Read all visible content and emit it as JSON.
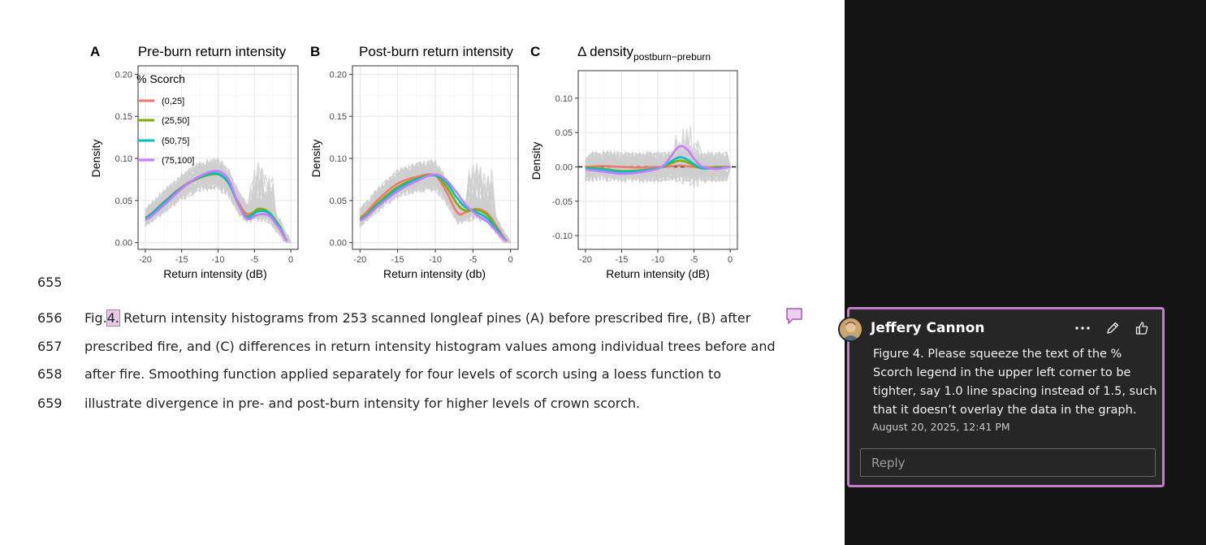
{
  "figure": {
    "panels": [
      {
        "letter": "A",
        "title": "Pre-burn return intensity",
        "ylabel": "Density",
        "xlabel": "Return intensity (dB)"
      },
      {
        "letter": "B",
        "title": "Post-burn return intensity",
        "ylabel": "Density",
        "xlabel": "Return intensity (db)"
      },
      {
        "letter": "C",
        "title": "Δ density",
        "title_sub": "postburn−preburn",
        "ylabel": "Density",
        "xlabel": "Return intensity (dB)"
      }
    ],
    "legend": {
      "title": "% Scorch",
      "items": [
        {
          "label": "(0,25]",
          "color": "#F07A6A"
        },
        {
          "label": "(25,50]",
          "color": "#7CAE00"
        },
        {
          "label": "(50,75]",
          "color": "#00BFC4"
        },
        {
          "label": "(75,100]",
          "color": "#C77CFF"
        }
      ]
    }
  },
  "chart_data": [
    {
      "type": "line",
      "title": "Pre-burn return intensity",
      "xlabel": "Return intensity (dB)",
      "ylabel": "Density",
      "xlim": [
        -20,
        0
      ],
      "ylim": [
        0,
        0.2
      ],
      "xticks": [
        -20,
        -15,
        -10,
        -5,
        0
      ],
      "xtick_labels": [
        "-20",
        "-15",
        "-10",
        "-5",
        "0"
      ],
      "yticks": [
        0,
        0.05,
        0.1,
        0.15,
        0.2
      ],
      "ytick_labels": [
        "0.00",
        "0.05",
        "0.10",
        "0.15",
        "0.20"
      ],
      "grid": true,
      "legend": "top-left",
      "series": [
        {
          "name": "(0,25]",
          "x": [
            -20,
            -17.5,
            -15,
            -12.5,
            -10,
            -8.5,
            -7,
            -6,
            -4.5,
            -3,
            -1.5,
            -0.5
          ],
          "y": [
            0.03,
            0.048,
            0.066,
            0.078,
            0.082,
            0.07,
            0.045,
            0.034,
            0.038,
            0.035,
            0.018,
            0.002
          ]
        },
        {
          "name": "(25,50]",
          "x": [
            -20,
            -17.5,
            -15,
            -12.5,
            -10,
            -8.5,
            -7,
            -6,
            -4.5,
            -3,
            -1.5,
            -0.5
          ],
          "y": [
            0.029,
            0.047,
            0.065,
            0.077,
            0.081,
            0.07,
            0.043,
            0.031,
            0.04,
            0.036,
            0.019,
            0.002
          ]
        },
        {
          "name": "(50,75]",
          "x": [
            -20,
            -17.5,
            -15,
            -12.5,
            -10,
            -8.5,
            -7,
            -6,
            -4.5,
            -3,
            -1.5,
            -0.5
          ],
          "y": [
            0.029,
            0.047,
            0.065,
            0.078,
            0.082,
            0.07,
            0.042,
            0.03,
            0.037,
            0.035,
            0.018,
            0.002
          ]
        },
        {
          "name": "(75,100]",
          "x": [
            -20,
            -17.5,
            -15,
            -12.5,
            -10,
            -8.5,
            -7,
            -6,
            -4.5,
            -3,
            -1.5,
            -0.5
          ],
          "y": [
            0.027,
            0.044,
            0.064,
            0.079,
            0.085,
            0.074,
            0.042,
            0.028,
            0.033,
            0.032,
            0.016,
            0.002
          ]
        }
      ]
    },
    {
      "type": "line",
      "title": "Post-burn return intensity",
      "xlabel": "Return intensity (db)",
      "ylabel": "Density",
      "xlim": [
        -20,
        0
      ],
      "ylim": [
        0,
        0.2
      ],
      "xticks": [
        -20,
        -15,
        -10,
        -5,
        0
      ],
      "xtick_labels": [
        "-20",
        "-15",
        "-10",
        "-5",
        "0"
      ],
      "yticks": [
        0,
        0.05,
        0.1,
        0.15,
        0.2
      ],
      "ytick_labels": [
        "0.00",
        "0.05",
        "0.10",
        "0.15",
        "0.20"
      ],
      "grid": true,
      "legend": "none",
      "series": [
        {
          "name": "(0,25]",
          "x": [
            -20,
            -17.5,
            -15,
            -12.5,
            -10,
            -8.5,
            -7,
            -6,
            -4.5,
            -3,
            -1.5,
            -0.5
          ],
          "y": [
            0.03,
            0.052,
            0.07,
            0.078,
            0.08,
            0.06,
            0.035,
            0.036,
            0.04,
            0.034,
            0.015,
            0.002
          ]
        },
        {
          "name": "(25,50]",
          "x": [
            -20,
            -17.5,
            -15,
            -12.5,
            -10,
            -8.5,
            -7,
            -6,
            -4.5,
            -3,
            -1.5,
            -0.5
          ],
          "y": [
            0.028,
            0.048,
            0.066,
            0.076,
            0.08,
            0.066,
            0.045,
            0.038,
            0.039,
            0.032,
            0.013,
            0.002
          ]
        },
        {
          "name": "(50,75]",
          "x": [
            -20,
            -17.5,
            -15,
            -12.5,
            -10,
            -8.5,
            -7,
            -6,
            -4.5,
            -3,
            -1.5,
            -0.5
          ],
          "y": [
            0.027,
            0.046,
            0.064,
            0.075,
            0.08,
            0.071,
            0.052,
            0.042,
            0.036,
            0.028,
            0.012,
            0.002
          ]
        },
        {
          "name": "(75,100]",
          "x": [
            -20,
            -17.5,
            -15,
            -12.5,
            -10,
            -8.5,
            -7,
            -6,
            -4.5,
            -3,
            -1.5,
            -0.5
          ],
          "y": [
            0.026,
            0.044,
            0.061,
            0.073,
            0.081,
            0.074,
            0.058,
            0.045,
            0.033,
            0.024,
            0.01,
            0.002
          ]
        }
      ]
    },
    {
      "type": "line",
      "title": "Δ density postburn−preburn",
      "xlabel": "Return intensity (dB)",
      "ylabel": "Density",
      "xlim": [
        -20,
        0
      ],
      "ylim": [
        -0.12,
        0.14
      ],
      "xticks": [
        -20,
        -15,
        -10,
        -5,
        0
      ],
      "xtick_labels": [
        "-20",
        "-15",
        "-10",
        "-5",
        "0"
      ],
      "yticks": [
        -0.1,
        -0.05,
        0,
        0.05,
        0.1
      ],
      "ytick_labels": [
        "-0.10",
        "-0.05",
        "0.00",
        "0.05",
        "0.10"
      ],
      "grid": true,
      "legend": "none",
      "reference_line_y": 0,
      "series": [
        {
          "name": "(0,25]",
          "x": [
            -20,
            -17.5,
            -15,
            -12.5,
            -10,
            -9,
            -8,
            -7,
            -6,
            -5,
            -4,
            -2,
            0
          ],
          "y": [
            0.0,
            0.001,
            0.0,
            -0.001,
            0.0,
            0.0,
            0.001,
            0.002,
            0.001,
            0.0,
            -0.001,
            0.0,
            0.0
          ]
        },
        {
          "name": "(25,50]",
          "x": [
            -20,
            -17.5,
            -15,
            -12.5,
            -10,
            -9,
            -8,
            -7,
            -6,
            -5,
            -4,
            -2,
            0
          ],
          "y": [
            -0.001,
            -0.003,
            -0.006,
            -0.005,
            -0.002,
            0.001,
            0.006,
            0.009,
            0.007,
            0.002,
            -0.002,
            -0.001,
            0.0
          ]
        },
        {
          "name": "(50,75]",
          "x": [
            -20,
            -17.5,
            -15,
            -12.5,
            -10,
            -9,
            -8,
            -7,
            -6,
            -5,
            -4,
            -2,
            0
          ],
          "y": [
            -0.002,
            -0.004,
            -0.007,
            -0.006,
            -0.002,
            0.002,
            0.009,
            0.014,
            0.011,
            0.004,
            -0.002,
            -0.002,
            0.0
          ]
        },
        {
          "name": "(75,100]",
          "x": [
            -20,
            -17.5,
            -15,
            -12.5,
            -10,
            -9,
            -8,
            -7,
            -6,
            -5,
            -4,
            -2,
            0
          ],
          "y": [
            -0.004,
            -0.007,
            -0.01,
            -0.008,
            -0.003,
            0.004,
            0.018,
            0.03,
            0.026,
            0.012,
            0.001,
            -0.003,
            0.0
          ]
        }
      ]
    }
  ],
  "document": {
    "line_numbers": [
      "655",
      "656",
      "657",
      "658",
      "659"
    ],
    "caption": {
      "prefix": "Fig.",
      "highlight": "4.",
      "rest_line1": "Return intensity histograms from 253 scanned longleaf pines (A) before prescribed fire, (B) after",
      "line2": "prescribed fire, and (C) differences in return intensity histogram values among individual trees before and",
      "line3": "after fire. Smoothing function applied separately for four levels of scorch using a loess function to",
      "line4": "illustrate divergence in pre- and post-burn intensity for higher levels of crown scorch."
    }
  },
  "comment": {
    "author": "Jeffery Cannon",
    "body": "Figure 4. Please squeeze the text of the % Scorch legend in the upper left corner to be tighter, say 1.0 line spacing instead of 1.5, such that it doesn’t overlay the data in the graph.",
    "timestamp": "August 20, 2025, 12:41 PM",
    "reply_placeholder": "Reply",
    "border_color": "#C47EC9",
    "icons": [
      "comment-marker-icon",
      "more-options-icon",
      "edit-icon",
      "like-icon"
    ]
  }
}
